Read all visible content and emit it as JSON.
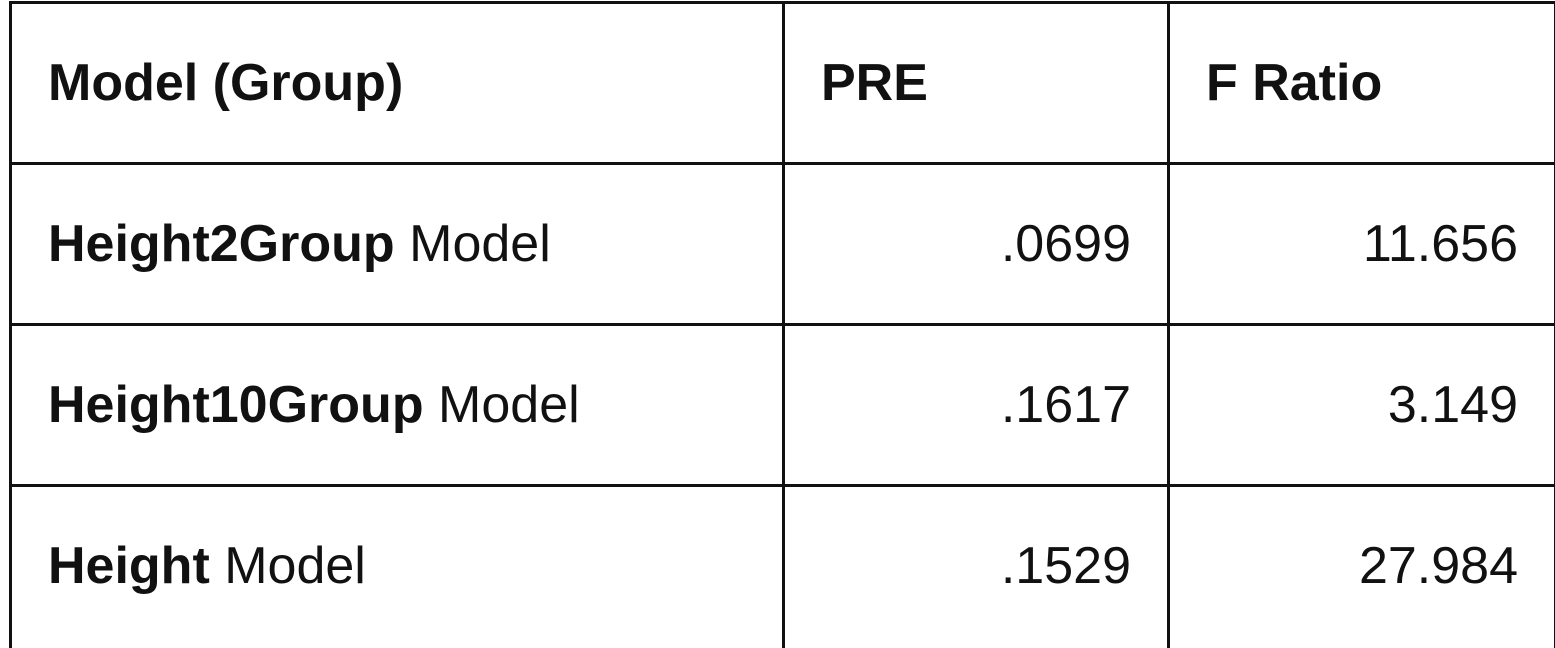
{
  "table": {
    "header": [
      "Model (Group)",
      "PRE",
      "F Ratio"
    ],
    "rows": [
      [
        {
          "bold": "Height2Group",
          "text": "Model"
        },
        ".0699",
        "11.656"
      ],
      [
        {
          "bold": "Height10Group",
          "text": "Model"
        },
        ".1617",
        "3.149"
      ],
      [
        {
          "bold": "Height",
          "text": "Model"
        },
        ".1529",
        "27.984"
      ]
    ]
  }
}
